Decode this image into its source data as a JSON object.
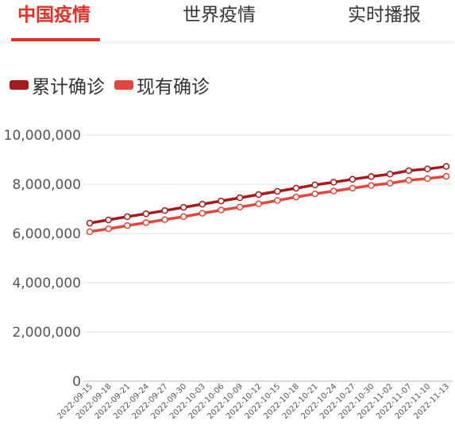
{
  "tabs": [
    {
      "label": "中国疫情",
      "active": true
    },
    {
      "label": "世界疫情",
      "active": false
    },
    {
      "label": "实时播报",
      "active": false
    }
  ],
  "colors": {
    "accent": "#e03128",
    "series1": "#a31b1b",
    "series2": "#e2473c",
    "grid": "#e2e2e2"
  },
  "chart_data": {
    "type": "line",
    "title": "",
    "xlabel": "",
    "ylabel": "",
    "ylim": [
      0,
      10000000
    ],
    "yticks": [
      0,
      2000000,
      4000000,
      6000000,
      8000000,
      10000000
    ],
    "ytick_labels": [
      "0",
      "2,000,000",
      "4,000,000",
      "6,000,000",
      "8,000,000",
      "10,000,000"
    ],
    "grid": true,
    "legend_position": "top-left",
    "x": [
      "2022-09-15",
      "2022-09-18",
      "2022-09-21",
      "2022-09-24",
      "2022-09-27",
      "2022-09-30",
      "2022-10-03",
      "2022-10-06",
      "2022-10-09",
      "2022-10-12",
      "2022-10-15",
      "2022-10-18",
      "2022-10-21",
      "2022-10-24",
      "2022-10-27",
      "2022-10-30",
      "2022-11-02",
      "2022-11-07",
      "2022-11-10",
      "2022-11-13"
    ],
    "series": [
      {
        "name": "累计确诊",
        "values": [
          6420000,
          6550000,
          6680000,
          6800000,
          6930000,
          7060000,
          7190000,
          7320000,
          7450000,
          7580000,
          7710000,
          7840000,
          7970000,
          8080000,
          8200000,
          8310000,
          8410000,
          8550000,
          8620000,
          8720000
        ]
      },
      {
        "name": "现有确诊",
        "values": [
          6070000,
          6190000,
          6320000,
          6440000,
          6560000,
          6680000,
          6820000,
          6950000,
          7070000,
          7200000,
          7340000,
          7480000,
          7610000,
          7720000,
          7840000,
          7950000,
          8040000,
          8160000,
          8230000,
          8320000
        ]
      }
    ]
  }
}
